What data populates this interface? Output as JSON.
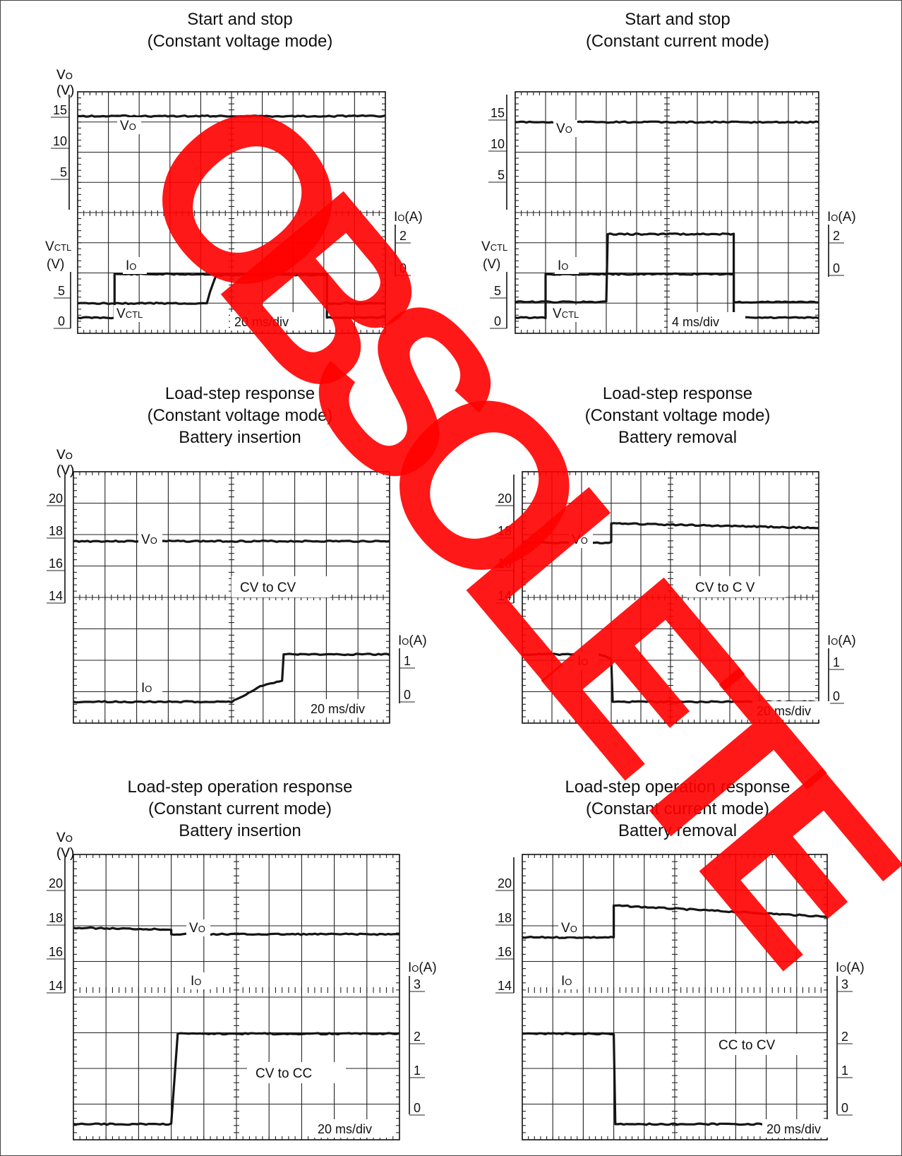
{
  "watermark": {
    "text": "OBSOLETE",
    "color": "#ff0000"
  },
  "chart_data": [
    {
      "type": "line",
      "title": [
        "Start and stop",
        "(Constant voltage mode)"
      ],
      "time_scale": "20 ms/div",
      "x_divisions": 10,
      "upper": {
        "axis_label": [
          "VO",
          "(V)"
        ],
        "ticks": [
          "15",
          "10",
          "5"
        ],
        "series": [
          {
            "name": "VO",
            "x": [
              0,
              10
            ],
            "y": [
              16,
              16
            ]
          }
        ]
      },
      "lower": {
        "axis_label": [
          "VCTL",
          "(V)"
        ],
        "ticks": [
          "5",
          "0"
        ],
        "series": [
          {
            "name": "VCTL",
            "x": [
              0,
              1.2,
              1.2,
              8.1,
              8.1,
              10
            ],
            "y": [
              0,
              0,
              5,
              5,
              0,
              0
            ]
          }
        ]
      },
      "right_axis": {
        "label": "IO(A)",
        "ticks": [
          "2",
          "0"
        ],
        "series": [
          {
            "name": "IO",
            "x": [
              0,
              4.2,
              4.3,
              4.5,
              8.1,
              8.1,
              10
            ],
            "y": [
              0,
              0,
              0.6,
              1.5,
              1.5,
              0,
              0
            ]
          }
        ]
      },
      "trace_labels": [
        "VO",
        "IO",
        "VCTL"
      ]
    },
    {
      "type": "line",
      "title": [
        "Start and stop",
        "(Constant current mode)"
      ],
      "time_scale": "4 ms/div",
      "x_divisions": 10,
      "upper": {
        "axis_label": [
          "VO",
          "(V)"
        ],
        "ticks": [
          "15",
          "10",
          "5"
        ],
        "series": [
          {
            "name": "VO",
            "x": [
              0,
              10
            ],
            "y": [
              15,
              15
            ]
          }
        ]
      },
      "lower": {
        "axis_label": [
          "VCTL",
          "(V)"
        ],
        "ticks": [
          "5",
          "0"
        ],
        "series": [
          {
            "name": "VCTL",
            "x": [
              0,
              1,
              1,
              7.2,
              7.2,
              10
            ],
            "y": [
              0,
              0,
              5,
              5,
              0,
              0
            ]
          }
        ]
      },
      "right_axis": {
        "label": "IO(A)",
        "ticks": [
          "2",
          "0"
        ],
        "series": [
          {
            "name": "IO",
            "x": [
              0,
              3,
              3.05,
              7.2,
              7.2,
              10
            ],
            "y": [
              0,
              0,
              2.6,
              2.6,
              0,
              0
            ]
          }
        ]
      },
      "trace_labels": [
        "VO",
        "IO",
        "VCTL"
      ]
    },
    {
      "type": "line",
      "title": [
        "Load-step response",
        "(Constant voltage mode)",
        "Battery insertion"
      ],
      "time_scale": "20 ms/div",
      "x_divisions": 10,
      "annotation": "CV  to  CV",
      "upper": {
        "axis_label": [
          "VO",
          "(V)"
        ],
        "ticks": [
          "20",
          "18",
          "16",
          "14"
        ],
        "series": [
          {
            "name": "VO",
            "x": [
              0,
              10
            ],
            "y": [
              17.3,
              17.3
            ]
          }
        ]
      },
      "right_axis": {
        "label": "IO(A)",
        "ticks": [
          "1",
          "0"
        ],
        "series": [
          {
            "name": "IO",
            "x": [
              0,
              5,
              6,
              6.6,
              6.65,
              10
            ],
            "y": [
              0,
              0,
              0.35,
              0.45,
              1,
              1
            ]
          }
        ]
      },
      "trace_labels": [
        "VO",
        "IO"
      ]
    },
    {
      "type": "line",
      "title": [
        "Load-step response",
        "(Constant voltage mode)",
        "Battery removal"
      ],
      "time_scale": "20 ms/div",
      "x_divisions": 10,
      "annotation": "CV  to  C V",
      "upper": {
        "axis_label": [
          "VO",
          "(V)"
        ],
        "ticks": [
          "20",
          "18",
          "16",
          "14"
        ],
        "series": [
          {
            "name": "VO",
            "x": [
              0,
              3,
              3,
              10
            ],
            "y": [
              17.2,
              17.2,
              18.5,
              18.2
            ]
          }
        ]
      },
      "right_axis": {
        "label": "IO(A)",
        "ticks": [
          "1",
          "0"
        ],
        "series": [
          {
            "name": "IO",
            "x": [
              0,
              2.6,
              3,
              3.05,
              10
            ],
            "y": [
              1,
              1,
              0.9,
              0,
              0
            ]
          }
        ]
      },
      "trace_labels": [
        "VO",
        "IO"
      ]
    },
    {
      "type": "line",
      "title": [
        "Load-step operation response",
        "(Constant current mode)",
        "Battery insertion"
      ],
      "time_scale": "20 ms/div",
      "x_divisions": 10,
      "annotation": "CV  to  CC",
      "upper": {
        "axis_label": [
          "VO",
          "(V)"
        ],
        "ticks": [
          "20",
          "18",
          "16",
          "14"
        ],
        "series": [
          {
            "name": "VO",
            "x": [
              0,
              3,
              3,
              10
            ],
            "y": [
              17.4,
              17.3,
              17.0,
              17.0
            ]
          }
        ]
      },
      "right_axis": {
        "label": "IO(A)",
        "ticks": [
          "3",
          "2",
          "1",
          "0"
        ],
        "series": [
          {
            "name": "IO",
            "x": [
              0,
              3,
              3.2,
              10
            ],
            "y": [
              0,
              0,
              2.9,
              2.9
            ]
          }
        ]
      },
      "trace_labels": [
        "VO",
        "IO"
      ]
    },
    {
      "type": "line",
      "title": [
        "Load-step operation response",
        "(Constant current mode)",
        "Battery removal"
      ],
      "time_scale": "20 ms/div",
      "x_divisions": 10,
      "annotation": "CC  to  CV",
      "upper": {
        "axis_label": [
          "VO",
          "(V)"
        ],
        "ticks": [
          "20",
          "18",
          "16",
          "14"
        ],
        "series": [
          {
            "name": "VO",
            "x": [
              0,
              3,
              3,
              10
            ],
            "y": [
              16.8,
              16.8,
              18.8,
              18.1
            ]
          }
        ]
      },
      "right_axis": {
        "label": "IO(A)",
        "ticks": [
          "3",
          "2",
          "1",
          "0"
        ],
        "series": [
          {
            "name": "IO",
            "x": [
              0,
              3,
              3.05,
              10
            ],
            "y": [
              2.9,
              2.9,
              0,
              0
            ]
          }
        ]
      },
      "trace_labels": [
        "VO",
        "IO"
      ]
    }
  ]
}
